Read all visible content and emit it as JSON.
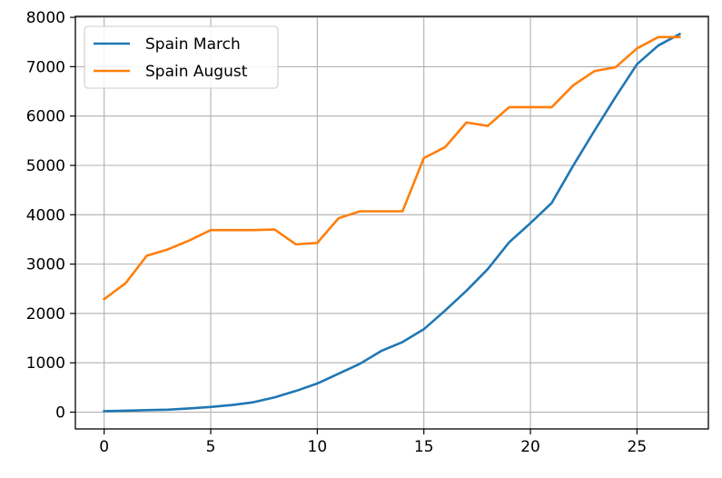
{
  "chart_data": {
    "type": "line",
    "title": "",
    "xlabel": "",
    "ylabel": "",
    "xlim": [
      -1.35,
      28.35
    ],
    "ylim": [
      -340,
      8020
    ],
    "grid": true,
    "legend_position": "top-left",
    "xticks": [
      0,
      5,
      10,
      15,
      20,
      25
    ],
    "yticks": [
      0,
      1000,
      2000,
      3000,
      4000,
      5000,
      6000,
      7000,
      8000
    ],
    "series": [
      {
        "name": "Spain March",
        "color": "#1f77b4",
        "x": [
          0,
          1,
          2,
          3,
          4,
          5,
          6,
          7,
          8,
          9,
          10,
          11,
          12,
          13,
          14,
          15,
          16,
          17,
          18,
          19,
          20,
          21,
          22,
          23,
          24,
          25,
          26,
          27
        ],
        "values": [
          20,
          30,
          40,
          50,
          75,
          105,
          145,
          200,
          300,
          430,
          580,
          780,
          980,
          1240,
          1420,
          1680,
          2060,
          2460,
          2900,
          3440,
          3830,
          4240,
          4990,
          5700,
          6390,
          7050,
          7430,
          7660
        ]
      },
      {
        "name": "Spain August",
        "color": "#ff7f0e",
        "x": [
          0,
          1,
          2,
          3,
          4,
          5,
          6,
          7,
          8,
          9,
          10,
          11,
          12,
          13,
          14,
          15,
          16,
          17,
          18,
          19,
          20,
          21,
          22,
          23,
          24,
          25,
          26,
          27
        ],
        "values": [
          2290,
          2610,
          3170,
          3300,
          3480,
          3690,
          3690,
          3690,
          3700,
          3400,
          3430,
          3930,
          4070,
          4070,
          4070,
          5150,
          5370,
          5870,
          5800,
          6180,
          6180,
          6180,
          6620,
          6910,
          6990,
          7370,
          7600,
          7600
        ]
      }
    ]
  }
}
